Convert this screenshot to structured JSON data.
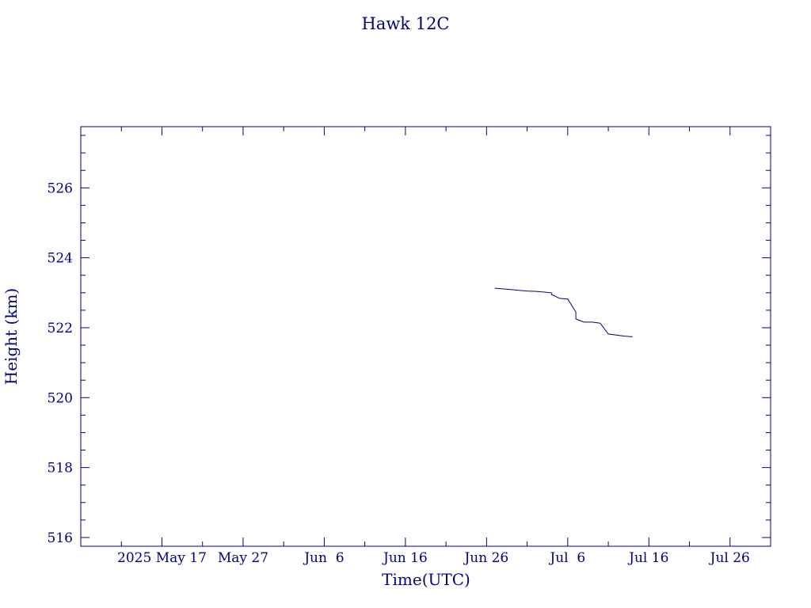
{
  "chart_data": {
    "type": "line",
    "title": "Hawk 12C",
    "xlabel": "Time(UTC)",
    "ylabel": "Height (km)",
    "x_ticks": [
      "2025 May 17",
      "May 27",
      "Jun  6",
      "Jun 16",
      "Jun 26",
      "Jul  6",
      "Jul 16",
      "Jul 26"
    ],
    "x_tick_dates": [
      "2025-05-17",
      "2025-05-27",
      "2025-06-06",
      "2025-06-16",
      "2025-06-26",
      "2025-07-06",
      "2025-07-16",
      "2025-07-26"
    ],
    "xlim": [
      "2025-05-07",
      "2025-07-31"
    ],
    "y_ticks": [
      "516",
      "518",
      "520",
      "522",
      "524",
      "526"
    ],
    "ylim": [
      515.75,
      527.75
    ],
    "grid": false,
    "colors": {
      "axis": "#000080",
      "line": "#000080",
      "background": "#ffffff"
    },
    "series": [
      {
        "points": [
          {
            "x": "2025-06-27",
            "y": 523.13
          },
          {
            "x": "2025-06-28",
            "y": 523.11
          },
          {
            "x": "2025-06-29",
            "y": 523.09
          },
          {
            "x": "2025-06-30",
            "y": 523.07
          },
          {
            "x": "2025-07-01",
            "y": 523.05
          },
          {
            "x": "2025-07-02",
            "y": 523.04
          },
          {
            "x": "2025-07-03",
            "y": 523.02
          },
          {
            "x": "2025-07-04",
            "y": 523.0
          },
          {
            "x": "2025-07-04",
            "y": 522.95
          },
          {
            "x": "2025-07-05",
            "y": 522.84
          },
          {
            "x": "2025-07-06",
            "y": 522.82
          },
          {
            "x": "2025-07-07",
            "y": 522.45
          },
          {
            "x": "2025-07-07",
            "y": 522.25
          },
          {
            "x": "2025-07-08",
            "y": 522.16
          },
          {
            "x": "2025-07-09",
            "y": 522.16
          },
          {
            "x": "2025-07-10",
            "y": 522.13
          },
          {
            "x": "2025-07-11",
            "y": 521.82
          },
          {
            "x": "2025-07-12",
            "y": 521.79
          },
          {
            "x": "2025-07-13",
            "y": 521.76
          },
          {
            "x": "2025-07-14",
            "y": 521.74
          }
        ]
      }
    ]
  }
}
